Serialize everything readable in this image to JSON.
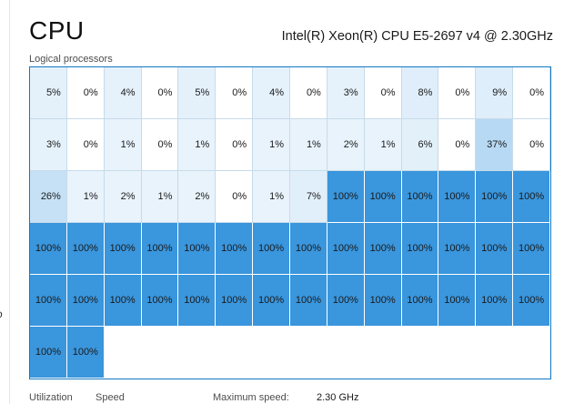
{
  "header": {
    "title": "CPU",
    "model": "Intel(R) Xeon(R) CPU E5-2697 v4 @ 2.30GHz"
  },
  "grid": {
    "label": "Logical processors",
    "columns": 14,
    "rows": [
      [
        "5%",
        "0%",
        "4%",
        "0%",
        "5%",
        "0%",
        "4%",
        "0%",
        "3%",
        "0%",
        "8%",
        "0%",
        "9%",
        "0%"
      ],
      [
        "3%",
        "0%",
        "1%",
        "0%",
        "1%",
        "0%",
        "1%",
        "1%",
        "2%",
        "1%",
        "6%",
        "0%",
        "37%",
        "0%"
      ],
      [
        "26%",
        "1%",
        "2%",
        "1%",
        "2%",
        "0%",
        "1%",
        "7%",
        "100%",
        "100%",
        "100%",
        "100%",
        "100%",
        "100%"
      ],
      [
        "100%",
        "100%",
        "100%",
        "100%",
        "100%",
        "100%",
        "100%",
        "100%",
        "100%",
        "100%",
        "100%",
        "100%",
        "100%",
        "100%"
      ],
      [
        "100%",
        "100%",
        "100%",
        "100%",
        "100%",
        "100%",
        "100%",
        "100%",
        "100%",
        "100%",
        "100%",
        "100%",
        "100%",
        "100%"
      ],
      [
        "100%",
        "100%"
      ]
    ]
  },
  "stats": {
    "utilization_label": "Utilization",
    "speed_label": "Speed",
    "max_speed_label": "Maximum speed:",
    "max_speed_value": "2.30 GHz"
  },
  "colors": {
    "full_fill": "#3a96dd",
    "light_fill": "#dcecfb",
    "grid_border": "#1178c4"
  }
}
